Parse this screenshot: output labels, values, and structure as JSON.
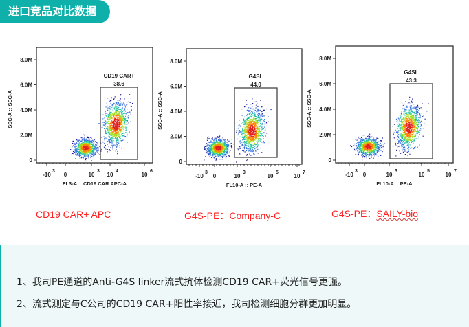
{
  "header": {
    "title": "进口竞品对比数据"
  },
  "chart_data": [
    {
      "type": "scatter",
      "subtype": "flow-cytometry-density-plot",
      "ylabel": "SSC-A :: SSC-A",
      "xlabel": "FL3-A :: CD19 CAR APC-A",
      "yticks": [
        "0",
        "2.0M",
        "4.0M",
        "6.0M",
        "8.0M"
      ],
      "xticks": [
        {
          "base": "-10",
          "exp": "3"
        },
        {
          "base": "0",
          "exp": ""
        },
        {
          "base": "10",
          "exp": "3"
        },
        {
          "base": "10",
          "exp": "4"
        },
        {
          "base": "10",
          "exp": "6"
        }
      ],
      "gate": {
        "name": "CD19 CAR+",
        "percent": "38.6"
      },
      "colors": [
        "#1a1aa0",
        "#3070e0",
        "#20c0a0",
        "#a0e020",
        "#ff8000",
        "#e02020"
      ]
    },
    {
      "type": "scatter",
      "subtype": "flow-cytometry-density-plot",
      "ylabel": "SSC-A :: SSC-A",
      "xlabel": "FL10-A :: PE-A",
      "yticks": [
        "0",
        "2.0M",
        "4.0M",
        "6.0M",
        "8.0M"
      ],
      "xticks": [
        {
          "base": "-10",
          "exp": "3"
        },
        {
          "base": "0",
          "exp": ""
        },
        {
          "base": "10",
          "exp": "3"
        },
        {
          "base": "10",
          "exp": "5"
        },
        {
          "base": "10",
          "exp": "7"
        }
      ],
      "gate": {
        "name": "G4SL",
        "percent": "44.0"
      },
      "colors": [
        "#1a1aa0",
        "#3070e0",
        "#20c0a0",
        "#a0e020",
        "#ff8000",
        "#e02020"
      ]
    },
    {
      "type": "scatter",
      "subtype": "flow-cytometry-density-plot",
      "ylabel": "SSC-A :: SSC-A",
      "xlabel": "FL10-A :: PE-A",
      "yticks": [
        "0",
        "2.0M",
        "4.0M",
        "6.0M",
        "8.0M"
      ],
      "xticks": [
        {
          "base": "-10",
          "exp": "3"
        },
        {
          "base": "0",
          "exp": ""
        },
        {
          "base": "10",
          "exp": "3"
        },
        {
          "base": "10",
          "exp": "5"
        },
        {
          "base": "10",
          "exp": "7"
        }
      ],
      "gate": {
        "name": "G4SL",
        "percent": "43.3"
      },
      "colors": [
        "#1a1aa0",
        "#3070e0",
        "#20c0a0",
        "#a0e020",
        "#ff8000",
        "#e02020"
      ]
    }
  ],
  "captions": [
    {
      "text": "CD19 CAR+ APC"
    },
    {
      "prefix": "G4S-PE：",
      "name": "Company-C"
    },
    {
      "prefix": "G4S-PE：",
      "name": "SAILY-bio"
    }
  ],
  "notes": [
    "1、我司PE通道的Anti-G4S linker流式抗体检测CD19 CAR+荧光信号更强。",
    "2、流式测定与C公司的CD19 CAR+阳性率接近，我司检测细胞分群更加明显。"
  ]
}
